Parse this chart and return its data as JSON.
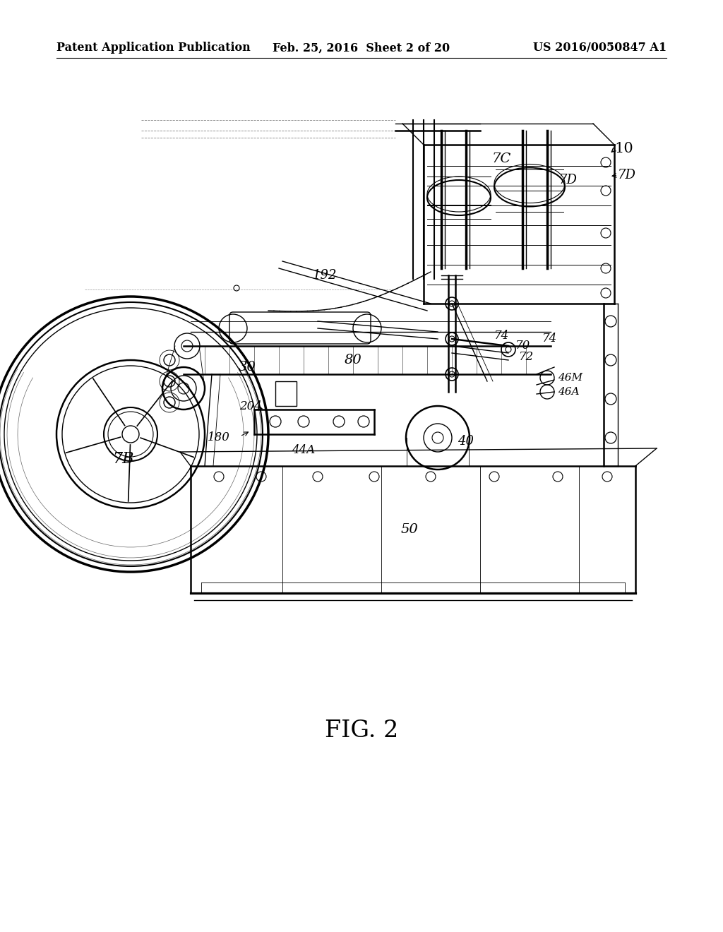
{
  "background_color": "#ffffff",
  "header_left": "Patent Application Publication",
  "header_center": "Feb. 25, 2016  Sheet 2 of 20",
  "header_right": "US 2016/0050847 A1",
  "header_fontsize": 11.5,
  "caption": "FIG. 2",
  "caption_fontsize": 24,
  "fig_width": 10.24,
  "fig_height": 13.2,
  "dpi": 100
}
